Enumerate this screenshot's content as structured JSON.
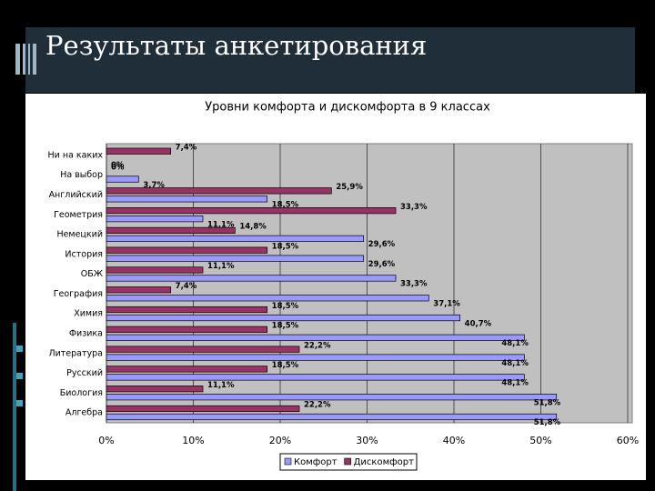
{
  "slide_title": "Результаты анкетирования",
  "chart_data": {
    "type": "hbar",
    "title": "Уровни комфорта и дискомфорта в 9 классах",
    "categories": [
      "Ни на каких",
      "На выбор",
      "Английский",
      "Геометрия",
      "Немецкий",
      "История",
      "ОБЖ",
      "География",
      "Химия",
      "Физика",
      "Литература",
      "Русский",
      "Биология",
      "Алгебра"
    ],
    "series": [
      {
        "name": "Дискомфорт",
        "color": "#993366",
        "values": [
          7.4,
          0,
          25.9,
          33.3,
          14.8,
          18.5,
          11.1,
          7.4,
          18.5,
          18.5,
          22.2,
          18.5,
          11.1,
          22.2
        ],
        "value_labels": [
          "7,4%",
          "0%",
          "25,9%",
          "33,3%",
          "14,8%",
          "18,5%",
          "11,1%",
          "7,4%",
          "18,5%",
          "18,5%",
          "22,2%",
          "18,5%",
          "11,1%",
          "22,2%"
        ]
      },
      {
        "name": "Комфорт",
        "color": "#9999ff",
        "values": [
          0,
          3.7,
          18.5,
          11.1,
          29.6,
          29.6,
          33.3,
          37.1,
          40.7,
          48.1,
          48.1,
          48.1,
          51.8,
          51.8
        ],
        "value_labels": [
          "0%",
          "3,7%",
          "18,5%",
          "11,1%",
          "29,6%",
          "29,6%",
          "33,3%",
          "37,1%",
          "40,7%",
          "48,1%",
          "48,1%",
          "48,1%",
          "51,8%",
          "51,8%"
        ]
      }
    ],
    "legend_order": [
      1,
      0
    ],
    "xlim": [
      0,
      60
    ],
    "xticks": [
      {
        "value": 0,
        "label": "0%"
      },
      {
        "value": 10,
        "label": "10%"
      },
      {
        "value": 20,
        "label": "20%"
      },
      {
        "value": 30,
        "label": "30%"
      },
      {
        "value": 40,
        "label": "40%"
      },
      {
        "value": 50,
        "label": "50%"
      },
      {
        "value": 60,
        "label": "60%"
      }
    ],
    "grid": true
  }
}
